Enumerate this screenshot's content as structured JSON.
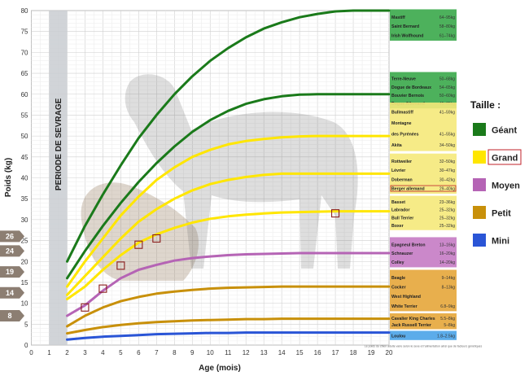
{
  "chart_data": {
    "type": "line",
    "xlabel": "Age (mois)",
    "ylabel": "Poids (kg)",
    "xlim": [
      0,
      20
    ],
    "ylim": [
      0,
      80
    ],
    "x_ticks": [
      0,
      1,
      2,
      3,
      4,
      5,
      6,
      7,
      8,
      9,
      10,
      11,
      12,
      13,
      14,
      15,
      16,
      17,
      18,
      19,
      20
    ],
    "y_ticks": [
      0,
      5,
      10,
      15,
      20,
      25,
      30,
      35,
      40,
      45,
      50,
      55,
      60,
      65,
      70,
      75,
      80
    ],
    "grid": true,
    "annotation_band": {
      "label": "PERIODE DE SEVRAGE",
      "x_range": [
        1,
        2
      ]
    },
    "series": [
      {
        "size": "Géant",
        "color": "#1a7a1a",
        "x": [
          2,
          3,
          4,
          5,
          6,
          7,
          8,
          9,
          10,
          11,
          12,
          13,
          14,
          15,
          16,
          17,
          18,
          19,
          20
        ],
        "y": [
          20,
          28.5,
          36,
          43,
          49.5,
          55,
          60,
          64.3,
          68,
          71,
          73.6,
          75.7,
          77.2,
          78.4,
          79.2,
          79.8,
          80,
          80,
          80
        ]
      },
      {
        "size": "Géant",
        "color": "#1a7a1a",
        "x": [
          2,
          3,
          4,
          5,
          6,
          7,
          8,
          9,
          10,
          11,
          12,
          13,
          14,
          15,
          16,
          17,
          18,
          19,
          20
        ],
        "y": [
          16,
          22.5,
          28.5,
          34,
          39,
          43.5,
          47.5,
          51,
          53.8,
          56,
          57.7,
          58.8,
          59.5,
          59.9,
          60,
          60,
          60,
          60,
          60
        ]
      },
      {
        "size": "Grand",
        "color": "#ffe600",
        "x": [
          2,
          3,
          4,
          5,
          6,
          7,
          8,
          9,
          10,
          11,
          12,
          13,
          14,
          15,
          16,
          17,
          18,
          19,
          20
        ],
        "y": [
          14,
          20,
          25.5,
          31,
          35.5,
          39.5,
          42.5,
          45,
          46.7,
          48,
          48.8,
          49.3,
          49.7,
          49.9,
          50,
          50,
          50,
          50,
          50
        ]
      },
      {
        "size": "Grand",
        "color": "#ffe600",
        "x": [
          2,
          3,
          4,
          5,
          6,
          7,
          8,
          9,
          10,
          11,
          12,
          13,
          14,
          15,
          16,
          17,
          18,
          19,
          20
        ],
        "y": [
          12,
          16.5,
          21,
          25.5,
          29.5,
          32.5,
          35,
          37,
          38.5,
          39.5,
          40.2,
          40.7,
          41,
          41,
          41,
          41,
          41,
          41,
          41
        ]
      },
      {
        "size": "Grand",
        "color": "#ffe600",
        "x": [
          2,
          3,
          4,
          5,
          6,
          7,
          8,
          9,
          10,
          11,
          12,
          13,
          14,
          15,
          16,
          17,
          18,
          19,
          20
        ],
        "y": [
          11,
          14,
          18,
          21.5,
          24.5,
          26.5,
          28,
          29.3,
          30.2,
          30.8,
          31.2,
          31.5,
          31.7,
          31.8,
          31.9,
          32,
          32,
          32,
          32
        ]
      },
      {
        "size": "Moyen",
        "color": "#b564b5",
        "x": [
          2,
          3,
          4,
          5,
          6,
          7,
          8,
          9,
          10,
          11,
          12,
          13,
          14,
          15,
          16,
          17,
          18,
          19,
          20
        ],
        "y": [
          7,
          9.5,
          13,
          16,
          18,
          19.2,
          20.2,
          20.8,
          21.2,
          21.5,
          21.7,
          21.8,
          21.9,
          22,
          22,
          22,
          22,
          22,
          22
        ]
      },
      {
        "size": "Petit",
        "color": "#c8900a",
        "x": [
          2,
          3,
          4,
          5,
          6,
          7,
          8,
          9,
          10,
          11,
          12,
          13,
          14,
          15,
          16,
          17,
          18,
          19,
          20
        ],
        "y": [
          4.5,
          7,
          9,
          10.5,
          11.5,
          12.3,
          12.8,
          13.2,
          13.5,
          13.7,
          13.8,
          13.9,
          14,
          14,
          14,
          14,
          14,
          14,
          14
        ]
      },
      {
        "size": "Petit",
        "color": "#c8900a",
        "x": [
          2,
          3,
          4,
          5,
          6,
          7,
          8,
          9,
          10,
          11,
          12,
          13,
          14,
          15,
          16,
          17,
          18,
          19,
          20
        ],
        "y": [
          2.8,
          3.6,
          4.3,
          4.8,
          5.2,
          5.5,
          5.7,
          5.9,
          6,
          6.1,
          6.2,
          6.2,
          6.3,
          6.3,
          6.3,
          6.3,
          6.3,
          6.3,
          6.3
        ]
      },
      {
        "size": "Mini",
        "color": "#2a55d6",
        "x": [
          2,
          3,
          4,
          5,
          6,
          7,
          8,
          9,
          10,
          11,
          12,
          13,
          14,
          15,
          16,
          17,
          18,
          19,
          20
        ],
        "y": [
          1.3,
          1.7,
          2,
          2.2,
          2.4,
          2.6,
          2.7,
          2.8,
          2.9,
          2.9,
          3,
          3,
          3,
          3,
          3,
          3,
          3,
          3,
          3
        ]
      }
    ],
    "markers": [
      {
        "x": 3,
        "y": 9
      },
      {
        "x": 4,
        "y": 13.5
      },
      {
        "x": 5,
        "y": 19
      },
      {
        "x": 6,
        "y": 24
      },
      {
        "x": 7,
        "y": 25.5
      },
      {
        "x": 17,
        "y": 31.5
      }
    ],
    "left_tags": [
      {
        "label": "26",
        "y": 26
      },
      {
        "label": "24",
        "y": 22.5
      },
      {
        "label": "19",
        "y": 17.5
      },
      {
        "label": "14",
        "y": 12.5
      },
      {
        "label": "8",
        "y": 7
      }
    ],
    "breed_groups": [
      {
        "color": "#3aa84a",
        "y_top": 80.3,
        "y_bottom": 72.8,
        "breeds": [
          {
            "name": "Mastiff",
            "range": "64–95kg"
          },
          {
            "name": "Saint Bernard",
            "range": "58–80kg"
          },
          {
            "name": "Irish Wolfhound",
            "range": "61–74kg"
          }
        ]
      },
      {
        "color": "#3aa84a",
        "y_top": 65.3,
        "y_bottom": 56.6,
        "breeds": [
          {
            "name": "Terre-Neuve",
            "range": "50–68kg"
          },
          {
            "name": "Dogue de Bordeaux",
            "range": "54–65kg"
          },
          {
            "name": "Bouvier Bernois",
            "range": "50–60kg"
          },
          {
            "name": "Dogue Allemand",
            "range": "45–65kg"
          }
        ]
      },
      {
        "color": "#f5e97a",
        "y_top": 58,
        "y_bottom": 46.4,
        "breeds": [
          {
            "name": "Bullmastiff",
            "range": "41–59kg"
          },
          {
            "name": "Montagne",
            "range": ""
          },
          {
            "name": "des Pyrénées",
            "range": "41–55kg"
          },
          {
            "name": "Akita",
            "range": "34–50kg"
          }
        ]
      },
      {
        "color": "#f5e97a",
        "y_top": 45.8,
        "y_bottom": 36.2,
        "breeds": [
          {
            "name": "Rottweiler",
            "range": "32–50kg"
          },
          {
            "name": "Lévrier",
            "range": "30–47kg"
          },
          {
            "name": "Doberman",
            "range": "30–42kg"
          },
          {
            "name": "Berger allemand",
            "range": "29–40kg",
            "highlight": true
          }
        ]
      },
      {
        "color": "#f5e97a",
        "y_top": 35.7,
        "y_bottom": 27.5,
        "breeds": [
          {
            "name": "Basset",
            "range": "23–36kg"
          },
          {
            "name": "Labrador",
            "range": "25–32kg"
          },
          {
            "name": "Bull Terrier",
            "range": "25–32kg"
          },
          {
            "name": "Boxer",
            "range": "25–32kg"
          }
        ]
      },
      {
        "color": "#c57bc4",
        "y_top": 25.8,
        "y_bottom": 18.6,
        "breeds": [
          {
            "name": "Epagneul Breton",
            "range": "13–16kg"
          },
          {
            "name": "Schnauzer",
            "range": "16–20kg"
          },
          {
            "name": "Colley",
            "range": "14–20kg"
          }
        ]
      },
      {
        "color": "#e5a63a",
        "y_top": 18,
        "y_bottom": 8.1,
        "breeds": [
          {
            "name": "Beagle",
            "range": "9–14kg"
          },
          {
            "name": "Cocker",
            "range": "8–13kg"
          },
          {
            "name": "West Highland",
            "range": ""
          },
          {
            "name": "White Terrier",
            "range": "6.8–9kg"
          }
        ]
      },
      {
        "color": "#e5a63a",
        "y_top": 7.6,
        "y_bottom": 3.8,
        "breeds": [
          {
            "name": "Cavalier King Charles",
            "range": "5.5–8kg"
          },
          {
            "name": "Jack Russell Terrier",
            "range": "5–8kg"
          }
        ]
      },
      {
        "color": "#4aa3e8",
        "y_top": 3.4,
        "y_bottom": 1.2,
        "breeds": [
          {
            "name": "Loulou",
            "range": "1.8–2.5kg"
          }
        ]
      }
    ],
    "legend": {
      "title": "Taille :",
      "items": [
        {
          "label": "Géant",
          "color": "#1a7a1a"
        },
        {
          "label": "Grand",
          "color": "#ffe600",
          "highlight": true
        },
        {
          "label": "Moyen",
          "color": "#b564b5"
        },
        {
          "label": "Petit",
          "color": "#c8900a"
        },
        {
          "label": "Mini",
          "color": "#2a55d6"
        }
      ]
    },
    "footnote": "Le poids du chien adulte varie selon le sexe et l'alimentation ainsi que de facteurs génétiques"
  }
}
